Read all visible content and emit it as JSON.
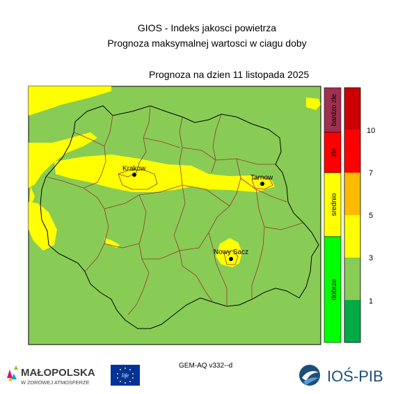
{
  "title_line1": "GIOS - Indeks jakosci powietrza",
  "title_line2": "Prognoza maksymalnej wartosci w ciagu doby",
  "forecast_date": "Prognoza na dzien  11 listopada 2025",
  "cities": [
    {
      "name": "Krakow"
    },
    {
      "name": "Tarnow"
    },
    {
      "name": "Nowy Sacz"
    }
  ],
  "quality_bar": [
    {
      "label": "bardzo złe",
      "color": "#a0304f"
    },
    {
      "label": "złe",
      "color": "#ff0000"
    },
    {
      "label": "srednio",
      "color": "#ffff00"
    },
    {
      "label": "dobrze",
      "color": "#00ff00"
    }
  ],
  "index_scale": {
    "colors": [
      "#cc0000",
      "#ff0000",
      "#ffbb00",
      "#ffff00",
      "#88cc55",
      "#00aa44"
    ],
    "tick_labels": [
      "10",
      "7",
      "5",
      "3",
      "1"
    ]
  },
  "map_colors": {
    "good": "#88cc55",
    "moderate": "#ffff00"
  },
  "model_label": "GEM-AQ v332--d",
  "logos": {
    "malopolska_name": "MAŁOPOLSKA",
    "malopolska_tagline": "W ZDROWEJ ATMOSFERZE",
    "eu_mark": "life",
    "ios_name": "IOŚ-PIB"
  }
}
